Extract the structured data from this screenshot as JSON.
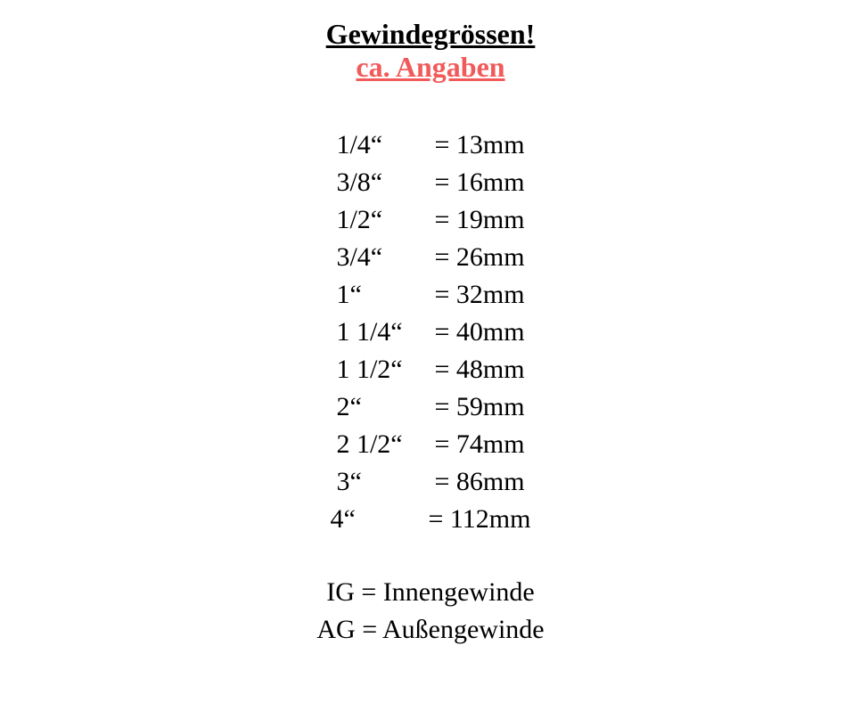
{
  "header": {
    "title": "Gewindegrössen!",
    "subtitle": "ca. Angaben"
  },
  "sizes": [
    {
      "inch": "1/4“",
      "mm": "= 13mm"
    },
    {
      "inch": "3/8“",
      "mm": "= 16mm"
    },
    {
      "inch": "1/2“",
      "mm": "= 19mm"
    },
    {
      "inch": "3/4“",
      "mm": "= 26mm"
    },
    {
      "inch": "1“",
      "mm": "= 32mm"
    },
    {
      "inch": "1 1/4“",
      "mm": "= 40mm"
    },
    {
      "inch": "1 1/2“",
      "mm": "= 48mm"
    },
    {
      "inch": "2“",
      "mm": "= 59mm"
    },
    {
      "inch": "2 1/2“",
      "mm": "= 74mm"
    },
    {
      "inch": "3“",
      "mm": "= 86mm"
    },
    {
      "inch": "4“",
      "mm": "= 112mm"
    }
  ],
  "legend": {
    "ig": "IG = Innengewinde",
    "ag": "AG = Außengewinde"
  },
  "styling": {
    "background_color": "#ffffff",
    "text_color": "#000000",
    "subtitle_color": "#f25a5a",
    "title_fontsize": 32,
    "body_fontsize": 30,
    "font_family": "Georgia, 'Times New Roman', serif"
  }
}
